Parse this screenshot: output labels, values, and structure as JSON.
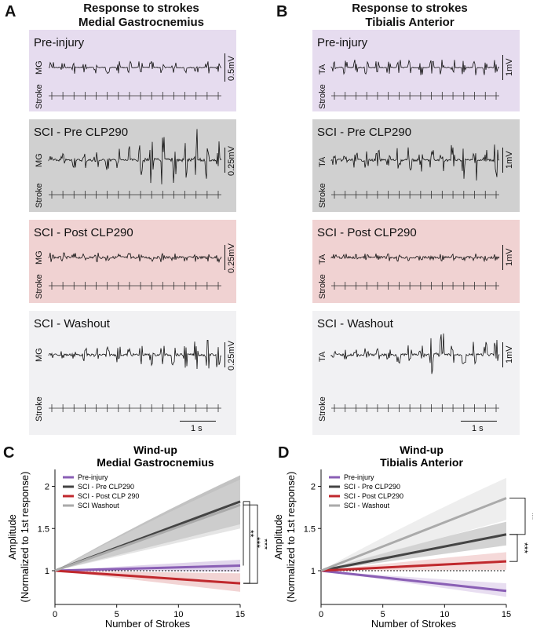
{
  "figure": {
    "panel_a": {
      "letter": "A",
      "title_line1": "Response to strokes",
      "title_line2": "Medial Gastrocnemius",
      "emg_label": "MG",
      "stroke_label": "Stroke",
      "conditions": [
        {
          "name": "Pre-injury",
          "scale": "0.5mV",
          "bg": "#e6dcef"
        },
        {
          "name": "SCI - Pre CLP290",
          "scale": "0.25mV",
          "bg": "#d0d0d0"
        },
        {
          "name": "SCI - Post CLP290",
          "scale": "0.25mV",
          "bg": "#f0d2d2"
        },
        {
          "name": "SCI - Washout",
          "scale": "0.25mV",
          "bg": "#f1f1f3"
        }
      ],
      "time_scale": "1 s"
    },
    "panel_b": {
      "letter": "B",
      "title_line1": "Response to strokes",
      "title_line2": "Tibialis Anterior",
      "emg_label": "TA",
      "stroke_label": "Stroke",
      "conditions": [
        {
          "name": "Pre-injury",
          "scale": "1mV",
          "bg": "#e6dcef"
        },
        {
          "name": "SCI - Pre CLP290",
          "scale": "1mV",
          "bg": "#d0d0d0"
        },
        {
          "name": "SCI - Post CLP290",
          "scale": "1mV",
          "bg": "#f0d2d2"
        },
        {
          "name": "SCI - Washout",
          "scale": "1mV",
          "bg": "#f1f1f3"
        }
      ],
      "time_scale": "1 s"
    }
  },
  "chart_data": [
    {
      "letter": "C",
      "type": "line",
      "title": "Wind-up",
      "subtitle": "Medial Gastrocnemius",
      "xlabel": "Number of Strokes",
      "ylabel": "Amplitude",
      "ylabel2": "(Normalized to 1st response)",
      "xlim": [
        0,
        15
      ],
      "ylim": [
        0.6,
        2.2
      ],
      "xticks": [
        0,
        5,
        10,
        15
      ],
      "yticks": [
        1,
        1.5,
        2
      ],
      "ytick_labels": [
        "1",
        "1.5",
        "2"
      ],
      "reference_line": 1,
      "series": [
        {
          "name": "Pre-injury",
          "color": "#8a5fb5",
          "band": "#cdb9e0",
          "start": 1,
          "end": 1.06,
          "band_end_low": 0.99,
          "band_end_high": 1.13
        },
        {
          "name": "SCI - Pre CLP290",
          "color": "#444444",
          "band": "#9a9a9a",
          "start": 1,
          "end": 1.82,
          "band_end_low": 1.55,
          "band_end_high": 2.13
        },
        {
          "name": "SCI - Post CLP 290",
          "color": "#c0282d",
          "band": "#eab8b8",
          "start": 1,
          "end": 0.85,
          "band_end_low": 0.75,
          "band_end_high": 0.97
        },
        {
          "name": "SCI Washout",
          "color": "#aaaaaa",
          "band": "#d4d4d4",
          "start": 1,
          "end": 1.78,
          "band_end_low": 1.5,
          "band_end_high": 2.08
        }
      ],
      "significance": [
        "**",
        "***",
        "***"
      ]
    },
    {
      "letter": "D",
      "type": "line",
      "title": "Wind-up",
      "subtitle": "Tibialis Anterior",
      "xlabel": "Number of Strokes",
      "ylabel": "Amplitude",
      "ylabel2": "(Normalized to 1st response)",
      "xlim": [
        0,
        15
      ],
      "ylim": [
        0.6,
        2.2
      ],
      "xticks": [
        0,
        5,
        10,
        15
      ],
      "yticks": [
        1,
        1.5,
        2
      ],
      "ytick_labels": [
        "1",
        "1.5",
        "2"
      ],
      "reference_line": 1,
      "series": [
        {
          "name": "Pre-injury",
          "color": "#8a5fb5",
          "band": "#d8c8e8",
          "start": 1,
          "end": 0.76,
          "band_end_low": 0.69,
          "band_end_high": 0.85
        },
        {
          "name": "SCI - Pre CLP290",
          "color": "#444444",
          "band": "#b5b5b5",
          "start": 1,
          "end": 1.43,
          "band_end_low": 1.3,
          "band_end_high": 1.58
        },
        {
          "name": "SCI - Post CLP290",
          "color": "#c0282d",
          "band": "#eec0c0",
          "start": 1,
          "end": 1.11,
          "band_end_low": 1.01,
          "band_end_high": 1.22
        },
        {
          "name": "SCI - Washout",
          "color": "#aaaaaa",
          "band": "#e2e2e2",
          "start": 1,
          "end": 1.86,
          "band_end_low": 1.6,
          "band_end_high": 2.1
        }
      ],
      "significance": [
        "**",
        "***"
      ]
    }
  ]
}
